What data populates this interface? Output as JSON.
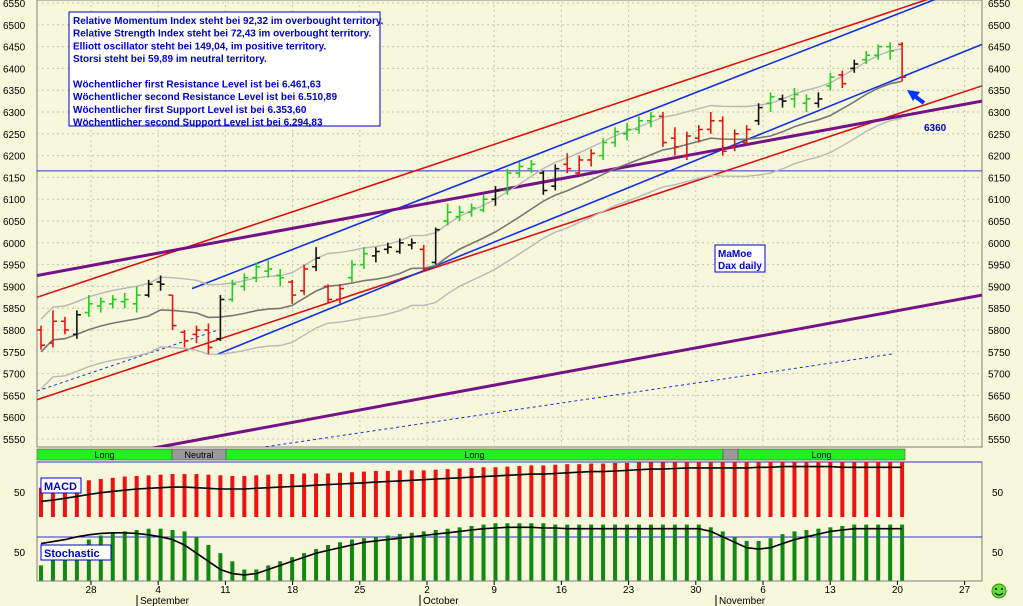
{
  "chart_data": [
    {
      "type": "candlestick",
      "title": "",
      "ylim": [
        5500,
        6560
      ],
      "y_ticks": [
        5550,
        5600,
        5650,
        5700,
        5750,
        5800,
        5850,
        5900,
        5950,
        6000,
        6050,
        6100,
        6150,
        6200,
        6250,
        6300,
        6350,
        6400,
        6450,
        6500,
        6550
      ],
      "x_tick_labels": [
        "28",
        "4",
        "11",
        "18",
        "25",
        "2",
        "9",
        "16",
        "23",
        "30",
        "6",
        "13",
        "20",
        "27"
      ],
      "month_labels": [
        "September",
        "October",
        "November"
      ],
      "info_lines": [
        "Relative Momentum Index steht bei 92,32 im overbought territory.",
        "Relative Strength Index steht bei 72,43 im overbought territory.",
        "Elliott oscillator steht bei 149,04, im positive territory.",
        "Storsi steht bei 59,89 im neutral territory.",
        "",
        "Wöchentlicher first Resistance Level ist bei 6.461,63",
        "Wöchentlicher second Resistance Level ist bei 6.510,89",
        "Wöchentlicher first Support Level ist bei 6.353,60",
        "Wöchentlicher second Support Level ist bei 6.294,83"
      ],
      "annotations": {
        "level_label": "6360",
        "badge_line1": "MaMoe",
        "badge_line2": "Dax daily"
      },
      "horizontal_line": 6165,
      "signal_bar": [
        {
          "label": "Long",
          "state": "long"
        },
        {
          "label": "Neutral",
          "state": "neutral"
        },
        {
          "label": "Long",
          "state": "long"
        },
        {
          "label": "",
          "state": "neutral"
        },
        {
          "label": "Long",
          "state": "long"
        }
      ],
      "candles": [
        {
          "o": 5800,
          "h": 5810,
          "l": 5755,
          "c": 5765,
          "color": "red"
        },
        {
          "o": 5770,
          "h": 5845,
          "l": 5760,
          "c": 5820,
          "color": "red"
        },
        {
          "o": 5820,
          "h": 5830,
          "l": 5790,
          "c": 5800,
          "color": "red"
        },
        {
          "o": 5790,
          "h": 5845,
          "l": 5780,
          "c": 5835,
          "color": "black"
        },
        {
          "o": 5840,
          "h": 5880,
          "l": 5830,
          "c": 5860,
          "color": "green"
        },
        {
          "o": 5855,
          "h": 5875,
          "l": 5840,
          "c": 5865,
          "color": "green"
        },
        {
          "o": 5860,
          "h": 5880,
          "l": 5850,
          "c": 5870,
          "color": "green"
        },
        {
          "o": 5865,
          "h": 5885,
          "l": 5850,
          "c": 5870,
          "color": "green"
        },
        {
          "o": 5860,
          "h": 5900,
          "l": 5840,
          "c": 5880,
          "color": "green"
        },
        {
          "o": 5880,
          "h": 5915,
          "l": 5875,
          "c": 5905,
          "color": "black"
        },
        {
          "o": 5910,
          "h": 5925,
          "l": 5890,
          "c": 5905,
          "color": "black"
        },
        {
          "o": 5880,
          "h": 5880,
          "l": 5800,
          "c": 5810,
          "color": "red"
        },
        {
          "o": 5795,
          "h": 5800,
          "l": 5760,
          "c": 5775,
          "color": "red"
        },
        {
          "o": 5790,
          "h": 5810,
          "l": 5770,
          "c": 5800,
          "color": "red"
        },
        {
          "o": 5800,
          "h": 5815,
          "l": 5745,
          "c": 5760,
          "color": "red"
        },
        {
          "o": 5780,
          "h": 5880,
          "l": 5775,
          "c": 5870,
          "color": "black"
        },
        {
          "o": 5870,
          "h": 5915,
          "l": 5865,
          "c": 5905,
          "color": "green"
        },
        {
          "o": 5900,
          "h": 5930,
          "l": 5890,
          "c": 5920,
          "color": "green"
        },
        {
          "o": 5920,
          "h": 5955,
          "l": 5910,
          "c": 5945,
          "color": "green"
        },
        {
          "o": 5935,
          "h": 5960,
          "l": 5920,
          "c": 5940,
          "color": "green"
        },
        {
          "o": 5925,
          "h": 5940,
          "l": 5900,
          "c": 5920,
          "color": "green"
        },
        {
          "o": 5910,
          "h": 5915,
          "l": 5860,
          "c": 5880,
          "color": "red"
        },
        {
          "o": 5890,
          "h": 5950,
          "l": 5880,
          "c": 5940,
          "color": "red"
        },
        {
          "o": 5945,
          "h": 5990,
          "l": 5935,
          "c": 5965,
          "color": "black"
        },
        {
          "o": 5900,
          "h": 5905,
          "l": 5860,
          "c": 5870,
          "color": "red"
        },
        {
          "o": 5870,
          "h": 5905,
          "l": 5860,
          "c": 5895,
          "color": "red"
        },
        {
          "o": 5920,
          "h": 5960,
          "l": 5910,
          "c": 5950,
          "color": "green"
        },
        {
          "o": 5950,
          "h": 5990,
          "l": 5940,
          "c": 5975,
          "color": "green"
        },
        {
          "o": 5970,
          "h": 5990,
          "l": 5955,
          "c": 5980,
          "color": "black"
        },
        {
          "o": 5985,
          "h": 6000,
          "l": 5975,
          "c": 5990,
          "color": "black"
        },
        {
          "o": 5980,
          "h": 6010,
          "l": 5975,
          "c": 6000,
          "color": "black"
        },
        {
          "o": 5995,
          "h": 6010,
          "l": 5985,
          "c": 6000,
          "color": "black"
        },
        {
          "o": 5985,
          "h": 5995,
          "l": 5935,
          "c": 5940,
          "color": "red"
        },
        {
          "o": 5955,
          "h": 6035,
          "l": 5950,
          "c": 6030,
          "color": "black"
        },
        {
          "o": 6050,
          "h": 6090,
          "l": 6040,
          "c": 6070,
          "color": "green"
        },
        {
          "o": 6060,
          "h": 6085,
          "l": 6050,
          "c": 6070,
          "color": "green"
        },
        {
          "o": 6070,
          "h": 6090,
          "l": 6060,
          "c": 6080,
          "color": "green"
        },
        {
          "o": 6075,
          "h": 6110,
          "l": 6070,
          "c": 6100,
          "color": "green"
        },
        {
          "o": 6100,
          "h": 6130,
          "l": 6085,
          "c": 6120,
          "color": "black"
        },
        {
          "o": 6120,
          "h": 6170,
          "l": 6110,
          "c": 6160,
          "color": "green"
        },
        {
          "o": 6160,
          "h": 6185,
          "l": 6150,
          "c": 6175,
          "color": "green"
        },
        {
          "o": 6170,
          "h": 6190,
          "l": 6160,
          "c": 6180,
          "color": "green"
        },
        {
          "o": 6160,
          "h": 6165,
          "l": 6110,
          "c": 6120,
          "color": "black"
        },
        {
          "o": 6130,
          "h": 6180,
          "l": 6120,
          "c": 6170,
          "color": "black"
        },
        {
          "o": 6180,
          "h": 6205,
          "l": 6160,
          "c": 6170,
          "color": "red"
        },
        {
          "o": 6160,
          "h": 6200,
          "l": 6155,
          "c": 6190,
          "color": "red"
        },
        {
          "o": 6190,
          "h": 6215,
          "l": 6175,
          "c": 6205,
          "color": "red"
        },
        {
          "o": 6200,
          "h": 6240,
          "l": 6190,
          "c": 6230,
          "color": "green"
        },
        {
          "o": 6230,
          "h": 6265,
          "l": 6220,
          "c": 6255,
          "color": "green"
        },
        {
          "o": 6250,
          "h": 6275,
          "l": 6235,
          "c": 6260,
          "color": "green"
        },
        {
          "o": 6260,
          "h": 6290,
          "l": 6250,
          "c": 6280,
          "color": "green"
        },
        {
          "o": 6280,
          "h": 6300,
          "l": 6265,
          "c": 6290,
          "color": "green"
        },
        {
          "o": 6290,
          "h": 6300,
          "l": 6220,
          "c": 6230,
          "color": "red"
        },
        {
          "o": 6240,
          "h": 6265,
          "l": 6200,
          "c": 6220,
          "color": "red"
        },
        {
          "o": 6200,
          "h": 6255,
          "l": 6190,
          "c": 6245,
          "color": "red"
        },
        {
          "o": 6240,
          "h": 6270,
          "l": 6230,
          "c": 6260,
          "color": "red"
        },
        {
          "o": 6260,
          "h": 6300,
          "l": 6250,
          "c": 6280,
          "color": "red"
        },
        {
          "o": 6280,
          "h": 6290,
          "l": 6200,
          "c": 6210,
          "color": "red"
        },
        {
          "o": 6220,
          "h": 6260,
          "l": 6210,
          "c": 6250,
          "color": "red"
        },
        {
          "o": 6230,
          "h": 6270,
          "l": 6225,
          "c": 6260,
          "color": "red"
        },
        {
          "o": 6280,
          "h": 6320,
          "l": 6270,
          "c": 6310,
          "color": "black"
        },
        {
          "o": 6320,
          "h": 6345,
          "l": 6300,
          "c": 6335,
          "color": "green"
        },
        {
          "o": 6330,
          "h": 6340,
          "l": 6310,
          "c": 6325,
          "color": "black"
        },
        {
          "o": 6330,
          "h": 6355,
          "l": 6310,
          "c": 6340,
          "color": "green"
        },
        {
          "o": 6320,
          "h": 6340,
          "l": 6300,
          "c": 6330,
          "color": "green"
        },
        {
          "o": 6320,
          "h": 6345,
          "l": 6310,
          "c": 6330,
          "color": "black"
        },
        {
          "o": 6360,
          "h": 6390,
          "l": 6350,
          "c": 6380,
          "color": "green"
        },
        {
          "o": 6385,
          "h": 6395,
          "l": 6355,
          "c": 6365,
          "color": "red"
        },
        {
          "o": 6400,
          "h": 6420,
          "l": 6390,
          "c": 6410,
          "color": "black"
        },
        {
          "o": 6420,
          "h": 6440,
          "l": 6410,
          "c": 6430,
          "color": "green"
        },
        {
          "o": 6430,
          "h": 6455,
          "l": 6420,
          "c": 6450,
          "color": "green"
        },
        {
          "o": 6450,
          "h": 6460,
          "l": 6420,
          "c": 6440,
          "color": "green"
        },
        {
          "o": 6455,
          "h": 6460,
          "l": 6370,
          "c": 6380,
          "color": "red"
        }
      ],
      "panels": [
        {
          "label": "MACD",
          "level_label": "50",
          "bar_color": "#ee1111",
          "values": [
            44,
            46,
            48,
            52,
            56,
            58,
            60,
            62,
            63,
            64,
            65,
            66,
            66,
            66,
            65,
            64,
            63,
            63,
            64,
            65,
            66,
            66,
            67,
            67,
            67,
            68,
            69,
            70,
            71,
            71,
            72,
            72,
            72,
            73,
            74,
            75,
            76,
            77,
            77,
            78,
            79,
            80,
            80,
            81,
            82,
            82,
            83,
            83,
            84,
            84,
            85,
            85,
            85,
            85,
            86,
            86,
            86,
            86,
            86,
            86,
            86,
            86,
            86,
            86,
            86,
            86,
            86,
            86,
            86,
            86,
            86,
            86,
            86
          ],
          "line": [
            22,
            24,
            27,
            30,
            33,
            36,
            38,
            40,
            42,
            43,
            44,
            45,
            45,
            44,
            43,
            42,
            42,
            42,
            43,
            44,
            45,
            46,
            47,
            48,
            49,
            50,
            51,
            52,
            53,
            54,
            55,
            56,
            57,
            58,
            59,
            60,
            61,
            62,
            63,
            64,
            65,
            66,
            66,
            67,
            68,
            69,
            70,
            70,
            71,
            72,
            73,
            74,
            74,
            75,
            76,
            76,
            76,
            76,
            76,
            76,
            77,
            77,
            78,
            78,
            78,
            78,
            78,
            77,
            77,
            77,
            77,
            77,
            77
          ]
        },
        {
          "label": "Stochastic",
          "level_label": "50",
          "bar_color": "#118811",
          "values": [
            20,
            30,
            40,
            50,
            58,
            64,
            68,
            70,
            72,
            74,
            74,
            72,
            70,
            62,
            50,
            38,
            26,
            14,
            14,
            20,
            26,
            32,
            38,
            44,
            50,
            54,
            58,
            60,
            62,
            64,
            66,
            68,
            70,
            72,
            74,
            76,
            78,
            80,
            82,
            82,
            82,
            82,
            82,
            80,
            80,
            80,
            80,
            80,
            80,
            80,
            80,
            80,
            80,
            80,
            80,
            80,
            76,
            70,
            62,
            56,
            56,
            60,
            66,
            70,
            72,
            74,
            76,
            78,
            80,
            80,
            80,
            80,
            80
          ],
          "line": [
            52,
            55,
            58,
            62,
            65,
            67,
            68,
            68,
            67,
            65,
            62,
            58,
            50,
            38,
            26,
            14,
            8,
            6,
            8,
            14,
            20,
            26,
            32,
            38,
            42,
            46,
            50,
            54,
            56,
            58,
            60,
            62,
            64,
            66,
            68,
            70,
            72,
            74,
            75,
            76,
            76,
            76,
            75,
            75,
            74,
            74,
            74,
            74,
            74,
            74,
            74,
            74,
            74,
            74,
            74,
            74,
            70,
            62,
            54,
            46,
            44,
            46,
            52,
            58,
            62,
            66,
            70,
            72,
            74,
            74,
            74,
            74,
            74
          ]
        }
      ]
    }
  ],
  "status_icon": "smiley-icon"
}
